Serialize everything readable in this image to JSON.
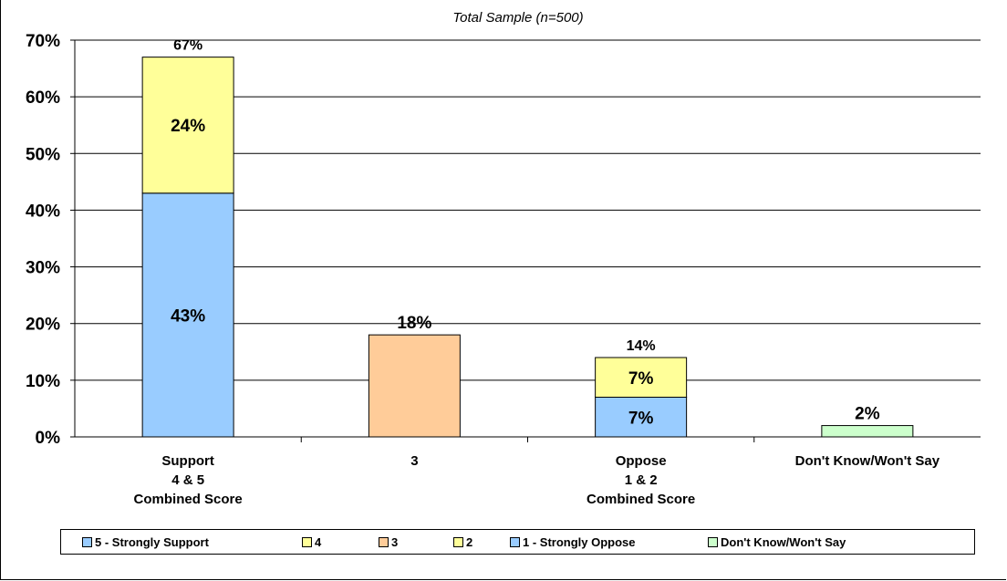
{
  "chart_data": {
    "type": "bar",
    "stacked": true,
    "title": "Total Sample (n=500)",
    "categories": [
      "Support\n4 & 5\nCombined Score",
      "3",
      "Oppose\n1 & 2\nCombined Score",
      "Don't Know/Won't Say"
    ],
    "ylim": [
      0,
      70
    ],
    "yticks": [
      "0%",
      "10%",
      "20%",
      "30%",
      "40%",
      "50%",
      "60%",
      "70%"
    ],
    "grid": true,
    "legend_position": "bottom",
    "bars": [
      {
        "segments": [
          {
            "legend": "5 - Strongly Support",
            "value": 43,
            "label": "43%",
            "color": "#99ccff"
          },
          {
            "legend": "4",
            "value": 24,
            "label": "24%",
            "color": "#ffff99"
          }
        ],
        "total_label": "67%"
      },
      {
        "segments": [
          {
            "legend": "3",
            "value": 18,
            "label": "18%",
            "color": "#ffcc99"
          }
        ],
        "total_label": ""
      },
      {
        "segments": [
          {
            "legend": "1 - Strongly Oppose",
            "value": 7,
            "label": "7%",
            "color": "#99ccff"
          },
          {
            "legend": "2",
            "value": 7,
            "label": "7%",
            "color": "#ffff99"
          }
        ],
        "total_label": "14%"
      },
      {
        "segments": [
          {
            "legend": "Don't Know/Won't Say",
            "value": 2,
            "label": "2%",
            "color": "#ccffcc"
          }
        ],
        "total_label": ""
      }
    ],
    "legend": [
      {
        "label": "5 - Strongly Support",
        "color": "#99ccff"
      },
      {
        "label": "4",
        "color": "#ffff99"
      },
      {
        "label": "3",
        "color": "#ffcc99"
      },
      {
        "label": "2",
        "color": "#ffff99"
      },
      {
        "label": "1 - Strongly Oppose",
        "color": "#99ccff"
      },
      {
        "label": "Don't Know/Won't Say",
        "color": "#ccffcc"
      }
    ]
  }
}
